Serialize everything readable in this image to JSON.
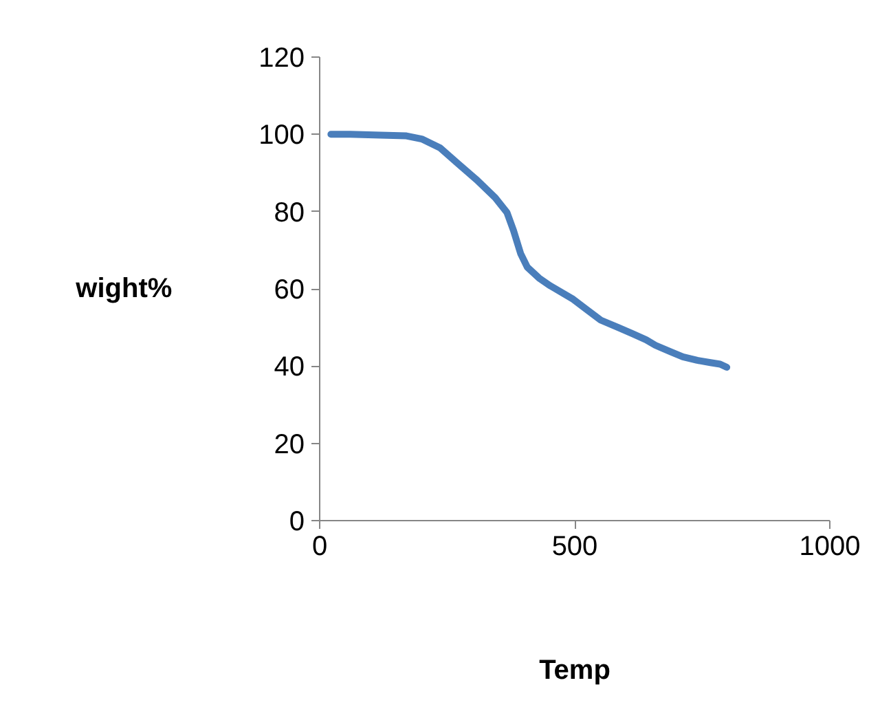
{
  "chart_data": {
    "type": "line",
    "xlabel": "Temp",
    "ylabel": "wight%",
    "xlim": [
      0,
      1000
    ],
    "xticks": [
      0,
      500,
      1000
    ],
    "ylim": [
      0,
      120
    ],
    "yticks": [
      0,
      20,
      40,
      60,
      80,
      100,
      120
    ],
    "grid": false,
    "marker": "none",
    "line_style": "solid",
    "series": [
      {
        "color": "#4a7ebb",
        "x": [
          22,
          60,
          119,
          170,
          200,
          236,
          272,
          308,
          344,
          367,
          380,
          394,
          407,
          430,
          452,
          497,
          525,
          551,
          585,
          613,
          640,
          658,
          690,
          712,
          740,
          766,
          785,
          798
        ],
        "values": [
          100.0,
          100.0,
          99.8,
          99.6,
          98.8,
          96.5,
          92.3,
          88.2,
          83.6,
          79.8,
          75.1,
          69.1,
          65.6,
          62.8,
          60.8,
          57.3,
          54.5,
          51.9,
          50.0,
          48.4,
          46.8,
          45.4,
          43.6,
          42.4,
          41.5,
          40.9,
          40.5,
          39.7
        ]
      }
    ]
  }
}
